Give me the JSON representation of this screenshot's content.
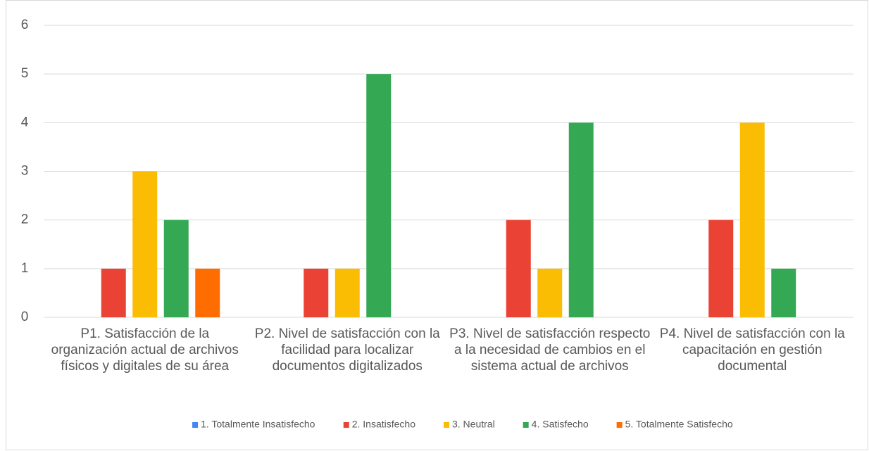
{
  "chart_data": {
    "type": "bar",
    "categories": [
      "P1. Satisfacción de la organización actual de archivos físicos y digitales de su área",
      "P2. Nivel de satisfacción con la facilidad para localizar documentos digitalizados",
      "P3. Nivel de satisfacción respecto a la necesidad de cambios en el sistema actual de archivos",
      "P4. Nivel de satisfacción con la capacitación en gestión documental"
    ],
    "series": [
      {
        "name": "1. Totalmente Insatisfecho",
        "color": "#4285f4",
        "values": [
          0,
          0,
          0,
          0
        ]
      },
      {
        "name": "2. Insatisfecho",
        "color": "#ea4335",
        "values": [
          1,
          1,
          2,
          2
        ]
      },
      {
        "name": "3. Neutral",
        "color": "#fbbc04",
        "values": [
          3,
          1,
          1,
          4
        ]
      },
      {
        "name": "4. Satisfecho",
        "color": "#34a853",
        "values": [
          2,
          5,
          4,
          1
        ]
      },
      {
        "name": "5. Totalmente Satisfecho",
        "color": "#ff6d01",
        "values": [
          1,
          0,
          0,
          0
        ]
      }
    ],
    "ylim": [
      0,
      6
    ],
    "yticks": [
      0,
      1,
      2,
      3,
      4,
      5,
      6
    ],
    "grid": true,
    "legend": "bottom"
  }
}
